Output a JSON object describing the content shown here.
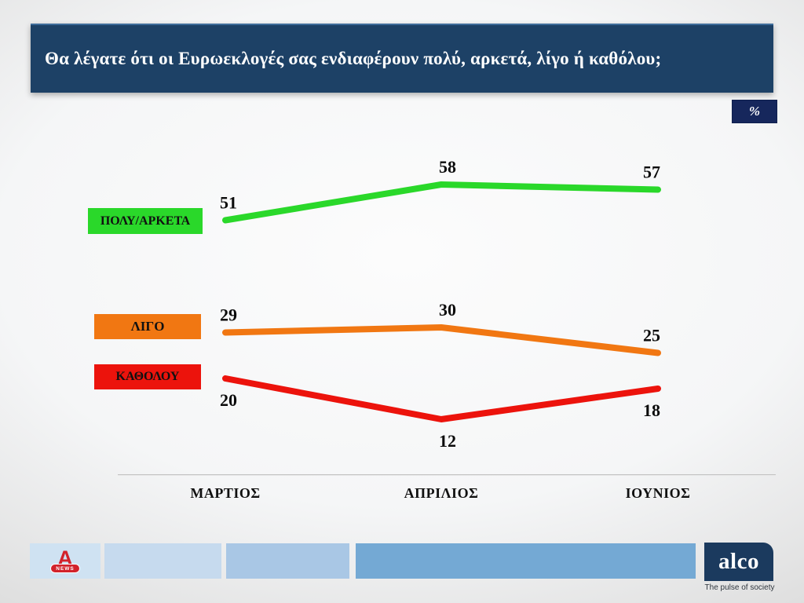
{
  "title_bar": {
    "text": "Θα λέγατε ότι οι Ευρωεκλογές σας ενδιαφέρουν πολύ, αρκετά, λίγο ή καθόλου;"
  },
  "percent_badge": "%",
  "chart_data": {
    "type": "line",
    "title": "Θα λέγατε ότι οι Ευρωεκλογές σας ενδιαφέρουν πολύ, αρκετά, λίγο ή καθόλου;",
    "unit": "%",
    "categories": [
      "ΜΑΡΤΙΟΣ",
      "ΑΠΡΙΛΙΟΣ",
      "ΙΟΥΝΙΟΣ"
    ],
    "series": [
      {
        "name": "ΠΟΛΥ/ΑΡΚΕΤΑ",
        "values": [
          51,
          58,
          57
        ],
        "color": "#2ad82a",
        "label_position": "above"
      },
      {
        "name": "ΛΙΓΟ",
        "values": [
          29,
          30,
          25
        ],
        "color": "#f17712",
        "label_position": "above"
      },
      {
        "name": "ΚΑΘΟΛΟΥ",
        "values": [
          20,
          12,
          18
        ],
        "color": "#ec130c",
        "label_position": "below"
      }
    ],
    "ylim": [
      0,
      70
    ],
    "grid": false,
    "legend_position": "left",
    "value_labels": true
  },
  "footer": {
    "alpha_logo": {
      "letter": "A",
      "news": "NEWS"
    },
    "alco": {
      "name": "alco",
      "tagline": "The pulse of society"
    }
  },
  "colors": {
    "title_bar": "#1d4166",
    "percent_badge": "#16275c",
    "alco_navy": "#1b3a5e",
    "footer_blues": [
      "#cfe2f2",
      "#c6daee",
      "#a9c7e5",
      "#74a9d4"
    ]
  }
}
